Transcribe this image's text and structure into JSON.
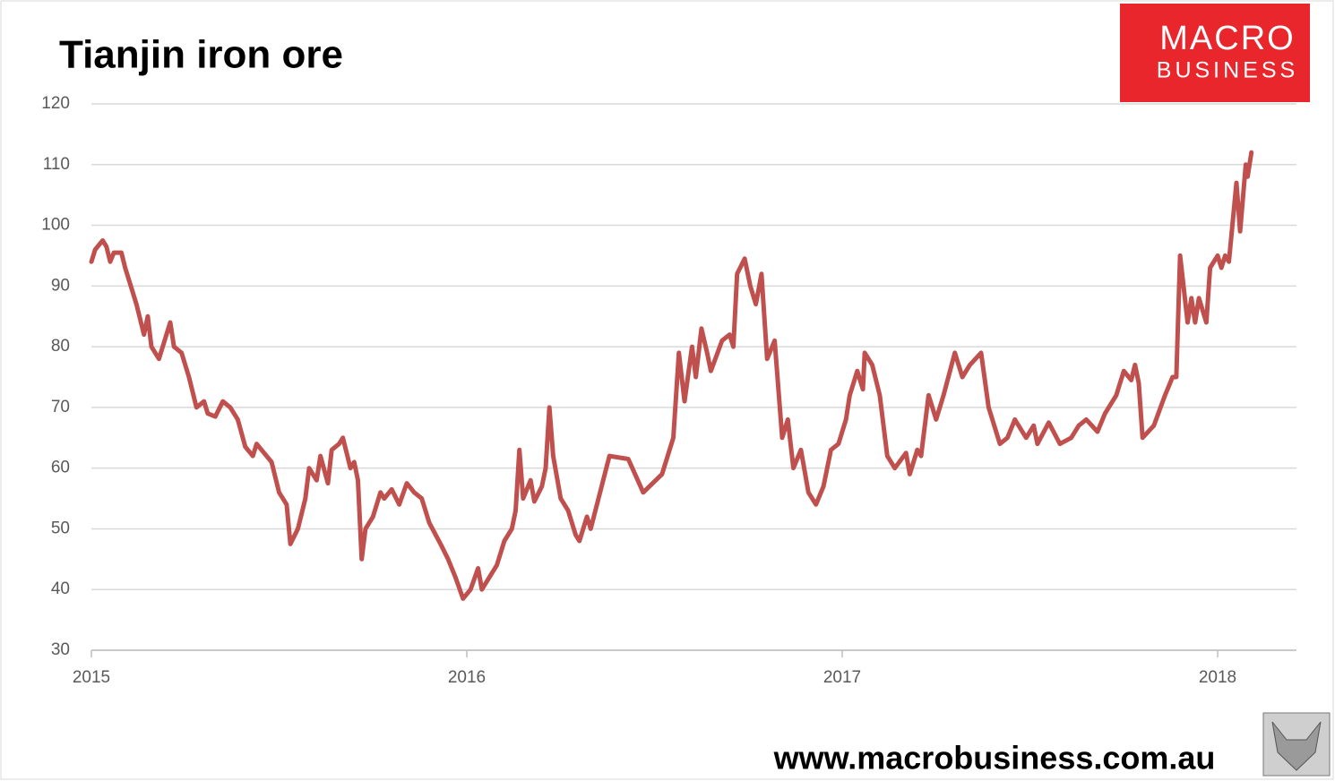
{
  "chart_data": {
    "type": "line",
    "title": "Tianjin iron ore",
    "logo": [
      "MACRO",
      "BUSINESS"
    ],
    "website": "www.macrobusiness.com.au",
    "color": "#c0504d",
    "grid": true,
    "xlim": [
      2015,
      2018.21
    ],
    "xticks": [
      2015,
      2016,
      2017,
      2018
    ],
    "ylim": [
      30,
      120
    ],
    "yticks": [
      30,
      40,
      50,
      60,
      70,
      80,
      90,
      100,
      110,
      120
    ],
    "x": [
      2015.0,
      2015.01,
      2015.03,
      2015.04,
      2015.05,
      2015.06,
      2015.08,
      2015.09,
      2015.11,
      2015.12,
      2015.14,
      2015.15,
      2015.16,
      2015.18,
      2015.19,
      2015.21,
      2015.22,
      2015.24,
      2015.26,
      2015.28,
      2015.3,
      2015.31,
      2015.33,
      2015.35,
      2015.37,
      2015.39,
      2015.41,
      2015.43,
      2015.44,
      2015.46,
      2015.48,
      2015.5,
      2015.52,
      2015.53,
      2015.55,
      2015.57,
      2015.58,
      2015.6,
      2015.61,
      2015.63,
      2015.64,
      2015.66,
      2015.67,
      2015.69,
      2015.7,
      2015.71,
      2015.72,
      2015.73,
      2015.75,
      2015.77,
      2015.78,
      2015.8,
      2015.82,
      2015.84,
      2015.86,
      2015.88,
      2015.9,
      2015.93,
      2015.95,
      2015.97,
      2015.99,
      2016.01,
      2016.03,
      2016.04,
      2016.06,
      2016.08,
      2016.1,
      2016.12,
      2016.13,
      2016.14,
      2016.15,
      2016.17,
      2016.18,
      2016.2,
      2016.21,
      2016.22,
      2016.23,
      2016.25,
      2016.27,
      2016.29,
      2016.3,
      2016.32,
      2016.33,
      2016.38,
      2016.43,
      2016.47,
      2016.52,
      2016.55,
      2016.565,
      2016.58,
      2016.6,
      2016.61,
      2016.625,
      2016.64,
      2016.65,
      2016.68,
      2016.7,
      2016.71,
      2016.72,
      2016.74,
      2016.755,
      2016.77,
      2016.785,
      2016.8,
      2016.82,
      2016.84,
      2016.855,
      2016.87,
      2016.89,
      2016.91,
      2016.93,
      2016.95,
      2016.97,
      2016.99,
      2017.01,
      2017.02,
      2017.04,
      2017.055,
      2017.06,
      2017.08,
      2017.1,
      2017.12,
      2017.14,
      2017.17,
      2017.18,
      2017.2,
      2017.21,
      2017.23,
      2017.25,
      2017.27,
      2017.3,
      2017.32,
      2017.34,
      2017.37,
      2017.39,
      2017.42,
      2017.44,
      2017.46,
      2017.49,
      2017.51,
      2017.52,
      2017.55,
      2017.58,
      2017.61,
      2017.63,
      2017.65,
      2017.68,
      2017.7,
      2017.73,
      2017.75,
      2017.77,
      2017.78,
      2017.79,
      2017.8,
      2017.83,
      2017.86,
      2017.88,
      2017.89,
      2017.9,
      2017.92,
      2017.93,
      2017.94,
      2017.95,
      2017.97,
      2017.98,
      2018.0,
      2018.01,
      2018.02,
      2018.03,
      2018.05,
      2018.06,
      2018.075,
      2018.08,
      2018.09
    ],
    "values": [
      94,
      96,
      97.5,
      96.5,
      94,
      95.5,
      95.5,
      93,
      89,
      87,
      82,
      85,
      80,
      78,
      80,
      84,
      80,
      79,
      75,
      70,
      71,
      69,
      68.5,
      71,
      70,
      68,
      63.5,
      62,
      64,
      62.5,
      61,
      56,
      54,
      47.5,
      50,
      55,
      60,
      58,
      62,
      57.5,
      63,
      64,
      65,
      60,
      61,
      58,
      45,
      50,
      52,
      56,
      55,
      56.5,
      54,
      57.5,
      56,
      55,
      51,
      47.5,
      45,
      42,
      38.5,
      40,
      43.5,
      40,
      42,
      44,
      48,
      50,
      53,
      63,
      55,
      58,
      54.5,
      57,
      60,
      70,
      62,
      55,
      53,
      49,
      48,
      52,
      50,
      62,
      61.5,
      56,
      59,
      65,
      79,
      71,
      80,
      75,
      83,
      79,
      76,
      81,
      82,
      80,
      92,
      94.5,
      90,
      87,
      92,
      78,
      81,
      65,
      68,
      60,
      63,
      56,
      54,
      57,
      63,
      64,
      68,
      72,
      76,
      73,
      79,
      77,
      72,
      62,
      60,
      62.5,
      59,
      63,
      62,
      72,
      68,
      72,
      79,
      75,
      77,
      79,
      70,
      64,
      65,
      68,
      65,
      67,
      64,
      67.5,
      64,
      65,
      67,
      68,
      66,
      69,
      72,
      76,
      74.5,
      77,
      74,
      65,
      67,
      72,
      75,
      75,
      95,
      84,
      88,
      84,
      88,
      84,
      93,
      95,
      93,
      95,
      94,
      107,
      99,
      110,
      108,
      112
    ]
  }
}
